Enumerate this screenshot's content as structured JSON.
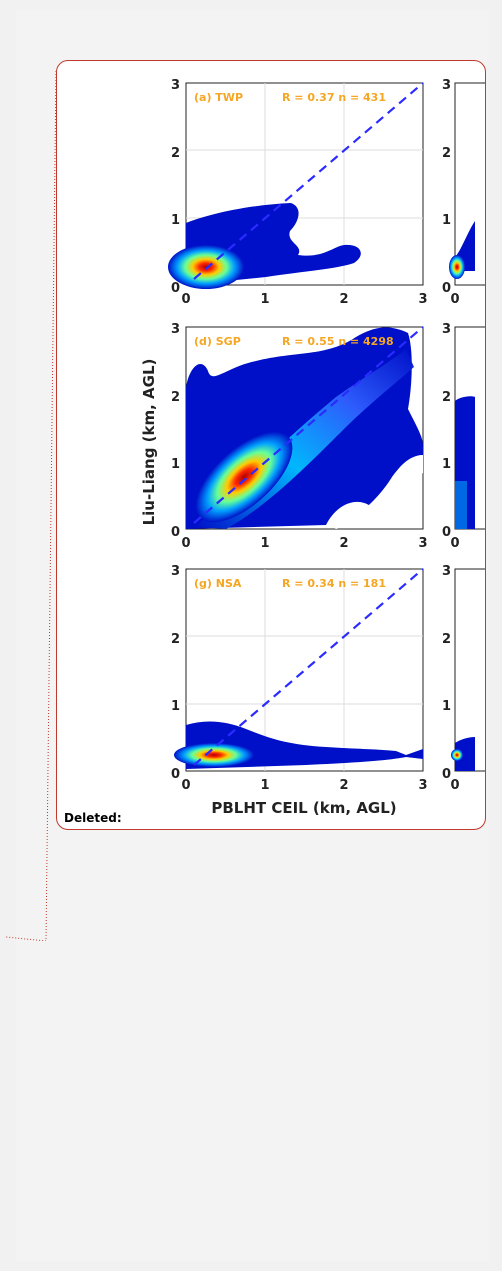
{
  "track_change": {
    "label": "Deleted:"
  },
  "figure": {
    "ylabel": "Liu-Liang (km, AGL)",
    "xlabel": "PBLHT CEIL (km, AGL)",
    "ticks": [
      "0",
      "1",
      "2",
      "3"
    ],
    "panels": [
      {
        "label": "(a) TWP",
        "stat": "R = 0.37  n = 431"
      },
      {
        "label": "(d) SGP",
        "stat": "R = 0.55  n = 4298"
      },
      {
        "label": "(g) NSA",
        "stat": "R = 0.34  n = 181"
      }
    ],
    "right_ticks": [
      "3",
      "2",
      "1",
      "0"
    ]
  },
  "colors": {
    "label_orange": "#f5a623",
    "dashed_line": "#2b2bff",
    "density_low": "#00008b",
    "comment_border": "#c0392b"
  }
}
